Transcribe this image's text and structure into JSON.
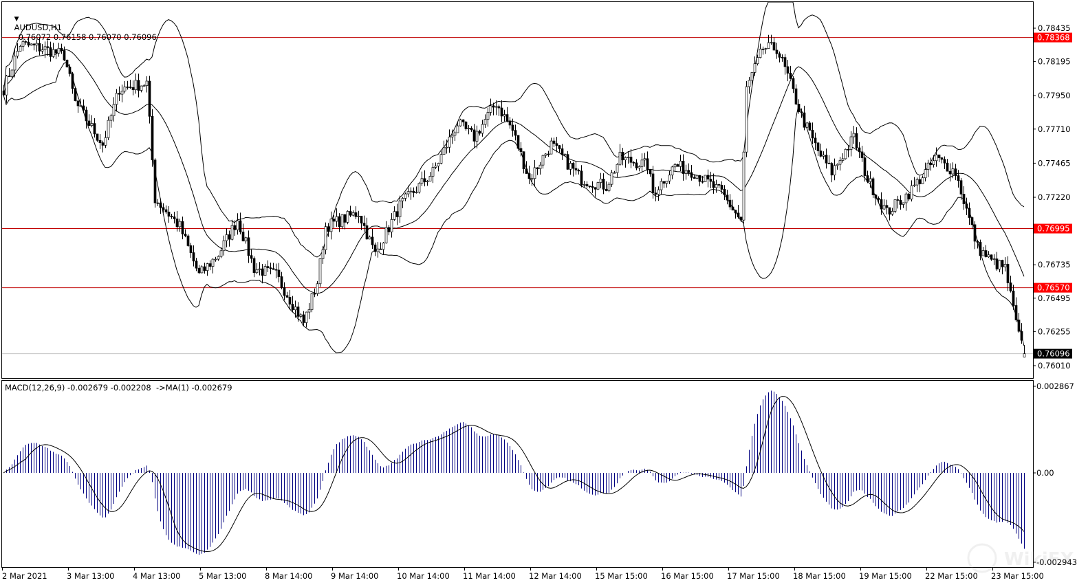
{
  "header": {
    "symbol": "AUDUSD,H1",
    "ohlc": "0.76072 0.76158 0.76070 0.76096",
    "dropdown_icon": "triangle-down-icon"
  },
  "macd_header": "MACD(12,26,9) -0.002679 -0.002208  ->MA(1) -0.002679",
  "price_axis": {
    "ticks": [
      "0.78435",
      "0.78195",
      "0.77950",
      "0.77710",
      "0.77465",
      "0.77220",
      "0.76735",
      "0.76495",
      "0.76255",
      "0.76010"
    ],
    "tick_values": [
      0.78435,
      0.78195,
      0.7795,
      0.7771,
      0.77465,
      0.7722,
      0.76735,
      0.76495,
      0.76255,
      0.7601
    ]
  },
  "levels": [
    {
      "label": "0.78368",
      "value": 0.78368
    },
    {
      "label": "0.76995",
      "value": 0.76995
    },
    {
      "label": "0.76570",
      "value": 0.7657
    }
  ],
  "current_price": {
    "label": "0.76096",
    "value": 0.76096
  },
  "macd_axis": {
    "ticks": [
      "0.002867",
      "0.00",
      "-0.002943"
    ],
    "tick_values": [
      0.002867,
      0,
      -0.002943
    ]
  },
  "time_axis": [
    "2 Mar 2021",
    "3 Mar 13:00",
    "4 Mar 13:00",
    "5 Mar 13:00",
    "8 Mar 14:00",
    "9 Mar 14:00",
    "10 Mar 14:00",
    "11 Mar 14:00",
    "12 Mar 14:00",
    "15 Mar 15:00",
    "16 Mar 15:00",
    "17 Mar 15:00",
    "18 Mar 15:00",
    "19 Mar 15:00",
    "22 Mar 15:00",
    "23 Mar 15:00"
  ],
  "colors": {
    "level_line": "#c00000",
    "level_label": "#ff0000",
    "macd_hist": "#000080",
    "candle": "#000000",
    "background": "#ffffff"
  },
  "chart_data": {
    "type": "candlestick",
    "symbol": "AUDUSD",
    "timeframe": "H1",
    "bars": 372,
    "indicators": [
      "Bollinger Bands(20,2)",
      "MACD(12,26,9)"
    ],
    "close_keypoints": [
      [
        0,
        0.78
      ],
      [
        6,
        0.7832
      ],
      [
        14,
        0.7829
      ],
      [
        22,
        0.7824
      ],
      [
        26,
        0.779
      ],
      [
        36,
        0.776
      ],
      [
        42,
        0.78
      ],
      [
        52,
        0.7804
      ],
      [
        55,
        0.7721
      ],
      [
        64,
        0.7701
      ],
      [
        71,
        0.7666
      ],
      [
        78,
        0.7681
      ],
      [
        85,
        0.7706
      ],
      [
        91,
        0.7671
      ],
      [
        99,
        0.7666
      ],
      [
        109,
        0.7632
      ],
      [
        114,
        0.7661
      ],
      [
        117,
        0.7701
      ],
      [
        129,
        0.7711
      ],
      [
        135,
        0.7681
      ],
      [
        144,
        0.7716
      ],
      [
        156,
        0.774
      ],
      [
        165,
        0.7775
      ],
      [
        171,
        0.7765
      ],
      [
        179,
        0.779
      ],
      [
        185,
        0.777
      ],
      [
        191,
        0.7735
      ],
      [
        199,
        0.776
      ],
      [
        210,
        0.7735
      ],
      [
        219,
        0.773
      ],
      [
        224,
        0.775
      ],
      [
        234,
        0.7745
      ],
      [
        236,
        0.7725
      ],
      [
        244,
        0.7745
      ],
      [
        251,
        0.774
      ],
      [
        261,
        0.7725
      ],
      [
        268,
        0.7705
      ],
      [
        270,
        0.78
      ],
      [
        276,
        0.7829
      ],
      [
        281,
        0.7829
      ],
      [
        285,
        0.7809
      ],
      [
        290,
        0.778
      ],
      [
        296,
        0.7755
      ],
      [
        301,
        0.774
      ],
      [
        309,
        0.7765
      ],
      [
        314,
        0.7735
      ],
      [
        321,
        0.7711
      ],
      [
        329,
        0.7725
      ],
      [
        339,
        0.775
      ],
      [
        346,
        0.774
      ],
      [
        354,
        0.7686
      ],
      [
        359,
        0.7676
      ],
      [
        364,
        0.7671
      ],
      [
        369,
        0.7622
      ],
      [
        371,
        0.761
      ]
    ],
    "last_bar": {
      "open": 0.76072,
      "high": 0.76158,
      "low": 0.7607,
      "close": 0.76096
    },
    "price_range": [
      0.7595,
      0.7862
    ],
    "macd_range": [
      -0.002943,
      0.002867
    ]
  }
}
